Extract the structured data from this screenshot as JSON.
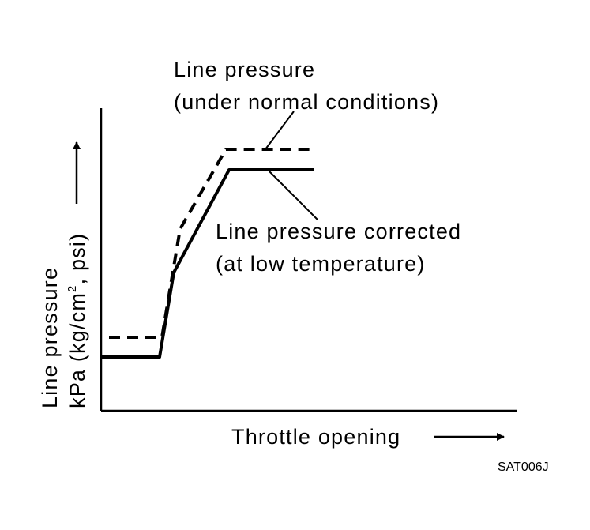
{
  "chart_data": {
    "type": "line",
    "x_axis_label": "Throttle opening",
    "y_axis_label_line1": "Line pressure",
    "y_axis_label_line2_prefix": "kPa (kg/cm",
    "y_axis_label_line2_sup": "2",
    "y_axis_label_line2_suffix": ", psi)",
    "series": [
      {
        "name_line1": "Line pressure",
        "name_line2": "(under normal conditions)",
        "style": "dashed"
      },
      {
        "name_line1": "Line pressure corrected",
        "name_line2": "(at low temperature)",
        "style": "solid"
      }
    ]
  },
  "figure_code": "SAT006J",
  "colors": {
    "ink": "#000000",
    "background": "#ffffff"
  }
}
